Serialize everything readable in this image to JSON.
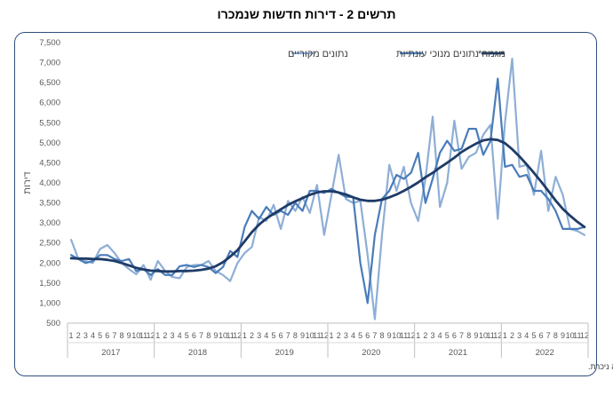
{
  "chart_data": {
    "type": "line",
    "title": "תרשים 2 - דירות חדשות שנמכרו",
    "ylabel": "דירות",
    "ylim": [
      500,
      7500
    ],
    "yticks": [
      "500",
      "1,000",
      "1,500",
      "2,000",
      "2,500",
      "3,000",
      "3,500",
      "4,000",
      "4,500",
      "5,000",
      "5,500",
      "6,000",
      "6,500",
      "7,000",
      "7,500"
    ],
    "year_labels": [
      "2017",
      "2018",
      "2019",
      "2020",
      "2021",
      "2022"
    ],
    "month_labels": [
      "1",
      "2",
      "3",
      "4",
      "5",
      "6",
      "7",
      "8",
      "9",
      "10",
      "11",
      "12"
    ],
    "legend_position": "top",
    "grid": false,
    "footnote": "* שלושת האומדנים האחרונים של המגמה עשויים להשתנות במידה ניכרת.",
    "series": [
      {
        "name": "נתונים מקוריים",
        "color": "#8eaed6",
        "width": 2.2,
        "values": [
          2580,
          2100,
          2050,
          2000,
          2350,
          2450,
          2250,
          2000,
          1850,
          1720,
          1950,
          1580,
          2050,
          1800,
          1650,
          1620,
          1900,
          1950,
          1950,
          2050,
          1800,
          1700,
          1550,
          2000,
          2250,
          2400,
          3150,
          3050,
          3450,
          2850,
          3550,
          3300,
          3650,
          3250,
          3950,
          2700,
          3700,
          4700,
          3600,
          3500,
          3550,
          2200,
          600,
          2700,
          4450,
          3800,
          4400,
          3500,
          3050,
          4100,
          5650,
          3400,
          4000,
          5550,
          4350,
          4650,
          4750,
          5200,
          5450,
          3100,
          5500,
          7100,
          4400,
          4450,
          3700,
          4800,
          3300,
          4150,
          3700,
          2850,
          2800,
          2700
        ]
      },
      {
        "name": "נתונים מנוכי עונתיות",
        "color": "#4a7cb9",
        "width": 2.2,
        "values": [
          2200,
          2100,
          2000,
          2050,
          2200,
          2200,
          2100,
          2050,
          2100,
          1800,
          1850,
          1700,
          1850,
          1700,
          1700,
          1920,
          1950,
          1900,
          1950,
          1900,
          1750,
          1900,
          2300,
          2150,
          2900,
          3300,
          3100,
          3400,
          3200,
          3300,
          3200,
          3500,
          3300,
          3800,
          3800,
          3750,
          3850,
          3750,
          3650,
          3650,
          2000,
          1000,
          2700,
          3600,
          3800,
          4200,
          4100,
          4250,
          4750,
          3500,
          4100,
          4750,
          5050,
          4800,
          4850,
          5350,
          5350,
          4700,
          5050,
          6600,
          4400,
          4450,
          4150,
          4200,
          3800,
          3800,
          3600,
          3300,
          2850,
          2850,
          2850,
          2900
        ]
      },
      {
        "name": "מגמה*",
        "color": "#1f3b67",
        "width": 2.8,
        "values": [
          2120,
          2110,
          2110,
          2100,
          2100,
          2080,
          2050,
          2000,
          1940,
          1880,
          1840,
          1810,
          1800,
          1790,
          1790,
          1800,
          1800,
          1810,
          1830,
          1860,
          1920,
          2020,
          2160,
          2320,
          2540,
          2770,
          2960,
          3110,
          3230,
          3340,
          3450,
          3540,
          3620,
          3700,
          3760,
          3790,
          3790,
          3760,
          3710,
          3640,
          3580,
          3550,
          3550,
          3580,
          3640,
          3710,
          3800,
          3900,
          4010,
          4140,
          4250,
          4380,
          4500,
          4630,
          4770,
          4880,
          4980,
          5060,
          5090,
          5070,
          4990,
          4840,
          4660,
          4460,
          4250,
          4030,
          3800,
          3560,
          3350,
          3180,
          3030,
          2900
        ]
      }
    ]
  }
}
